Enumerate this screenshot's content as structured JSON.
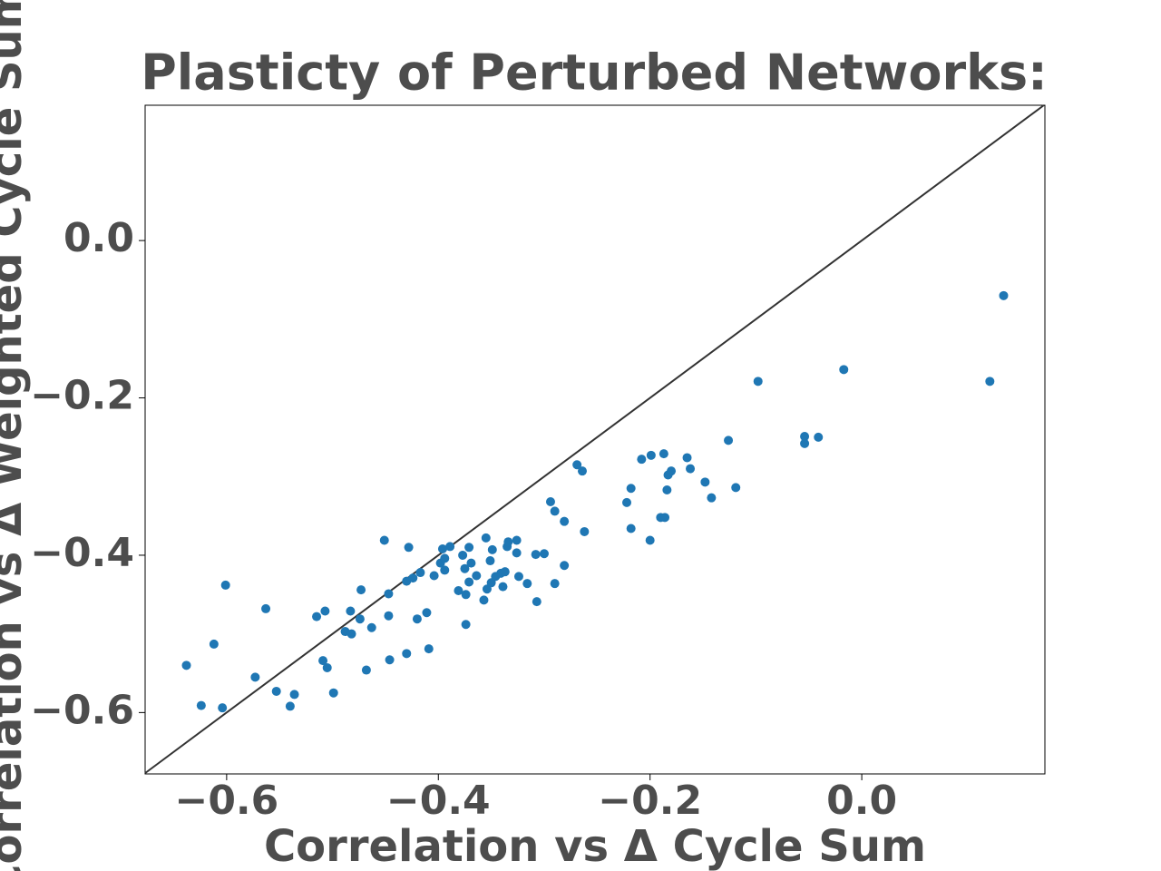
{
  "chart_data": {
    "type": "scatter",
    "title": "Plasticty of Perturbed Networks:",
    "xlabel": "Correlation vs Δ Cycle Sum",
    "ylabel": "Correlation vs Δ Weighted Cycle Sum",
    "color": "#1f77b4",
    "identity_line": true,
    "xlim": [
      -0.677,
      0.173
    ],
    "ylim": [
      -0.678,
      0.172
    ],
    "xticks": [
      {
        "value": -0.6,
        "label": "−0.6"
      },
      {
        "value": -0.4,
        "label": "−0.4"
      },
      {
        "value": -0.2,
        "label": "−0.2"
      },
      {
        "value": 0,
        "label": "0.0"
      }
    ],
    "yticks": [
      {
        "value": -0.6,
        "label": "−0.6"
      },
      {
        "value": -0.4,
        "label": "−0.4"
      },
      {
        "value": -0.2,
        "label": "−0.2"
      },
      {
        "value": 0,
        "label": "0.0"
      }
    ],
    "x": [
      -0.638,
      -0.624,
      -0.612,
      -0.604,
      -0.601,
      -0.573,
      -0.563,
      -0.553,
      -0.54,
      -0.536,
      -0.515,
      -0.509,
      -0.507,
      -0.505,
      -0.499,
      -0.488,
      -0.483,
      -0.482,
      -0.474,
      -0.473,
      -0.468,
      -0.463,
      -0.451,
      -0.447,
      -0.447,
      -0.446,
      -0.43,
      -0.43,
      -0.428,
      -0.424,
      -0.42,
      -0.417,
      -0.411,
      -0.409,
      -0.404,
      -0.398,
      -0.396,
      -0.394,
      -0.394,
      -0.389,
      -0.381,
      -0.377,
      -0.375,
      -0.374,
      -0.374,
      -0.371,
      -0.371,
      -0.369,
      -0.364,
      -0.357,
      -0.355,
      -0.354,
      -0.351,
      -0.35,
      -0.349,
      -0.346,
      -0.341,
      -0.339,
      -0.337,
      -0.335,
      -0.334,
      -0.326,
      -0.326,
      -0.324,
      -0.316,
      -0.308,
      -0.307,
      -0.3,
      -0.294,
      -0.29,
      -0.29,
      -0.281,
      -0.281,
      -0.269,
      -0.264,
      -0.262,
      -0.222,
      -0.218,
      -0.218,
      -0.208,
      -0.2,
      -0.199,
      -0.19,
      -0.187,
      -0.186,
      -0.184,
      -0.183,
      -0.18,
      -0.165,
      -0.162,
      -0.148,
      -0.142,
      -0.126,
      -0.119,
      -0.098,
      -0.054,
      -0.054,
      -0.041,
      -0.017,
      0.121,
      0.134
    ],
    "values": [
      -0.54,
      -0.591,
      -0.513,
      -0.594,
      -0.438,
      -0.555,
      -0.468,
      -0.573,
      -0.592,
      -0.577,
      -0.478,
      -0.534,
      -0.471,
      -0.543,
      -0.575,
      -0.497,
      -0.471,
      -0.5,
      -0.481,
      -0.444,
      -0.546,
      -0.492,
      -0.381,
      -0.477,
      -0.449,
      -0.533,
      -0.433,
      -0.525,
      -0.39,
      -0.429,
      -0.481,
      -0.422,
      -0.473,
      -0.519,
      -0.426,
      -0.41,
      -0.392,
      -0.404,
      -0.419,
      -0.389,
      -0.445,
      -0.4,
      -0.417,
      -0.45,
      -0.488,
      -0.39,
      -0.434,
      -0.41,
      -0.426,
      -0.457,
      -0.378,
      -0.443,
      -0.407,
      -0.435,
      -0.393,
      -0.427,
      -0.423,
      -0.44,
      -0.421,
      -0.389,
      -0.383,
      -0.381,
      -0.397,
      -0.427,
      -0.436,
      -0.399,
      -0.459,
      -0.398,
      -0.332,
      -0.344,
      -0.436,
      -0.357,
      -0.413,
      -0.285,
      -0.293,
      -0.37,
      -0.333,
      -0.315,
      -0.366,
      -0.278,
      -0.381,
      -0.273,
      -0.352,
      -0.271,
      -0.352,
      -0.317,
      -0.298,
      -0.293,
      -0.276,
      -0.29,
      -0.307,
      -0.327,
      -0.254,
      -0.314,
      -0.179,
      -0.249,
      -0.258,
      -0.25,
      -0.164,
      -0.179,
      -0.07
    ]
  }
}
